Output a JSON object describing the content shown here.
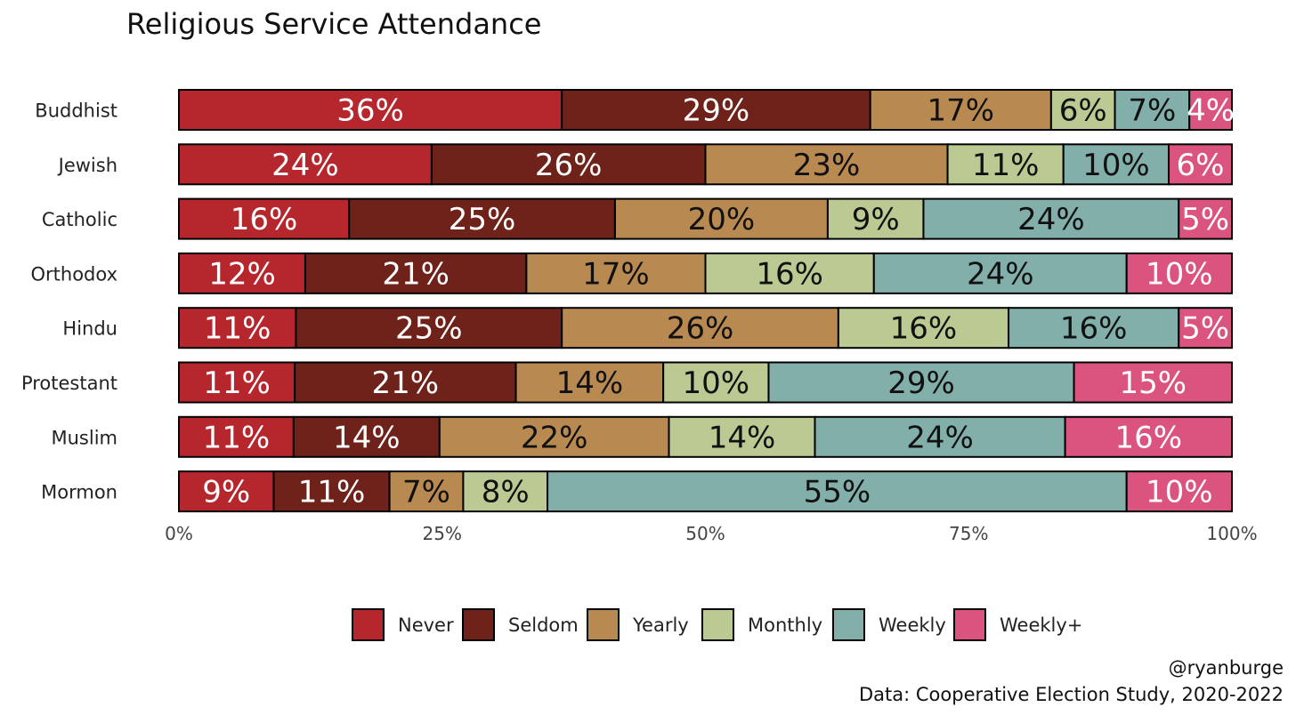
{
  "chart_data": {
    "type": "bar",
    "orientation": "horizontal",
    "stacked": true,
    "title": "Religious Service Attendance",
    "categories": [
      "Buddhist",
      "Jewish",
      "Catholic",
      "Orthodox",
      "Hindu",
      "Protestant",
      "Muslim",
      "Mormon"
    ],
    "series": [
      {
        "name": "Never",
        "color": "#B5272D",
        "values": [
          36,
          24,
          16,
          12,
          11,
          11,
          11,
          9
        ],
        "labels": [
          "36%",
          "24%",
          "16%",
          "12%",
          "11%",
          "11%",
          "11%",
          "9%"
        ],
        "label_color": "#ffffff"
      },
      {
        "name": "Seldom",
        "color": "#6E2219",
        "values": [
          29,
          26,
          25,
          21,
          25,
          21,
          14,
          11
        ],
        "labels": [
          "29%",
          "26%",
          "25%",
          "21%",
          "25%",
          "21%",
          "14%",
          "11%"
        ],
        "label_color": "#ffffff"
      },
      {
        "name": "Yearly",
        "color": "#B88A52",
        "values": [
          17,
          23,
          20,
          17,
          26,
          14,
          22,
          7
        ],
        "labels": [
          "17%",
          "23%",
          "20%",
          "17%",
          "26%",
          "14%",
          "22%",
          "7%"
        ],
        "label_color": "#111111"
      },
      {
        "name": "Monthly",
        "color": "#BACA92",
        "values": [
          6,
          11,
          9,
          16,
          16,
          10,
          14,
          8
        ],
        "labels": [
          "6%",
          "11%",
          "9%",
          "16%",
          "16%",
          "10%",
          "14%",
          "8%"
        ],
        "label_color": "#111111"
      },
      {
        "name": "Weekly",
        "color": "#82AFA9",
        "values": [
          7,
          10,
          24,
          24,
          16,
          29,
          24,
          55
        ],
        "labels": [
          "7%",
          "10%",
          "24%",
          "24%",
          "16%",
          "29%",
          "24%",
          "55%"
        ],
        "label_color": "#111111"
      },
      {
        "name": "Weekly+",
        "color": "#DB537F",
        "values": [
          4,
          6,
          5,
          10,
          5,
          15,
          16,
          10
        ],
        "labels": [
          "4%",
          "6%",
          "5%",
          "10%",
          "5%",
          "15%",
          "16%",
          "10%"
        ],
        "label_color": "#ffffff"
      }
    ],
    "xlim": [
      0,
      100
    ],
    "x_ticks": [
      "0%",
      "25%",
      "50%",
      "75%",
      "100%"
    ],
    "grid": false,
    "legend_position": "bottom"
  },
  "credits": {
    "handle": "@ryanburge",
    "source": "Data: Cooperative Election Study, 2020-2022"
  }
}
